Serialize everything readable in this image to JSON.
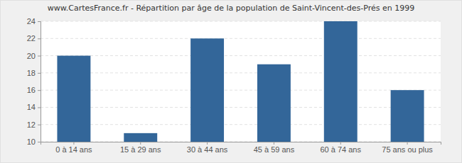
{
  "chart_data": {
    "type": "bar",
    "title": "www.CartesFrance.fr - Répartition par âge de la population de Saint-Vincent-des-Prés en 1999",
    "categories": [
      "0 à 14 ans",
      "15 à 29 ans",
      "30 à 44 ans",
      "45 à 59 ans",
      "60 à 74 ans",
      "75 ans ou plus"
    ],
    "values": [
      20,
      11,
      22,
      19,
      24,
      16
    ],
    "color": "#336699",
    "ylim": [
      10,
      24
    ],
    "yticks": [
      10,
      12,
      14,
      16,
      18,
      20,
      22,
      24
    ],
    "grid": true
  }
}
